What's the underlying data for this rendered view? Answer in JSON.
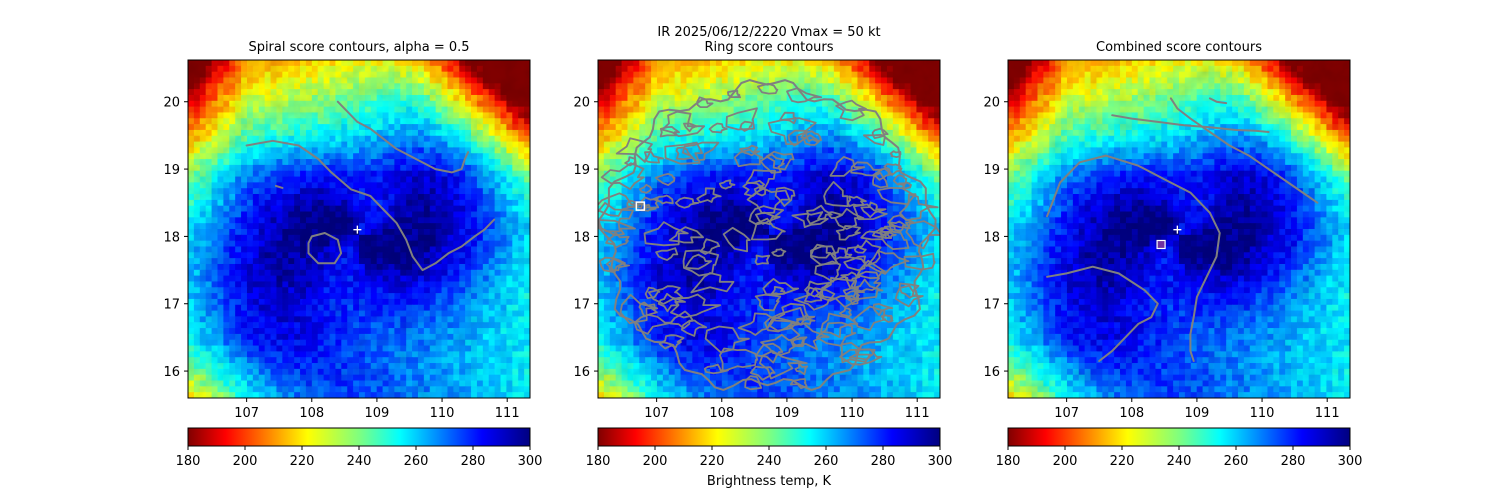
{
  "chart_data": {
    "type": "heatmap",
    "suptitle": "IR  2025/06/12/2220    Vmax = 50 kt",
    "colorbar_label": "Brightness temp, K",
    "colorbar_ticks": [
      "180",
      "200",
      "220",
      "240",
      "260",
      "280",
      "300"
    ],
    "xticks": [
      "107",
      "108",
      "109",
      "110",
      "111"
    ],
    "yticks": [
      "16",
      "17",
      "18",
      "19",
      "20"
    ],
    "xlim": [
      106.1,
      111.35
    ],
    "ylim": [
      15.6,
      20.62
    ],
    "clim": [
      180,
      300
    ],
    "colors": {
      "contour": "#808080",
      "center_marker": "#ffffff",
      "ring_marker": "#ffffff",
      "combined_marker": "#7030a0"
    },
    "storm_center": {
      "lon": 108.7,
      "lat": 18.1
    },
    "panels": [
      {
        "title": "Spiral score contours, alpha =  0.5",
        "mode": "spiral",
        "contours": [
          [
            [
              107.0,
              19.35
            ],
            [
              107.4,
              19.42
            ],
            [
              107.8,
              19.35
            ],
            [
              108.1,
              19.15
            ],
            [
              108.3,
              18.95
            ],
            [
              108.6,
              18.7
            ],
            [
              108.9,
              18.6
            ],
            [
              109.1,
              18.4
            ],
            [
              109.3,
              18.2
            ],
            [
              109.45,
              17.95
            ],
            [
              109.55,
              17.7
            ],
            [
              109.7,
              17.5
            ],
            [
              109.9,
              17.6
            ],
            [
              110.1,
              17.75
            ],
            [
              110.3,
              17.85
            ],
            [
              110.5,
              18.0
            ],
            [
              110.65,
              18.1
            ],
            [
              110.8,
              18.25
            ]
          ],
          [
            [
              108.4,
              20.0
            ],
            [
              108.55,
              19.85
            ],
            [
              108.7,
              19.7
            ],
            [
              108.9,
              19.6
            ],
            [
              109.1,
              19.45
            ],
            [
              109.3,
              19.3
            ],
            [
              109.6,
              19.15
            ],
            [
              109.9,
              19.0
            ],
            [
              110.15,
              18.95
            ],
            [
              110.3,
              19.0
            ],
            [
              110.35,
              19.15
            ],
            [
              110.4,
              19.25
            ]
          ],
          [
            [
              108.0,
              18.0
            ],
            [
              108.2,
              18.05
            ],
            [
              108.4,
              17.95
            ],
            [
              108.45,
              17.75
            ],
            [
              108.35,
              17.6
            ],
            [
              108.1,
              17.6
            ],
            [
              107.95,
              17.75
            ],
            [
              107.95,
              17.9
            ],
            [
              108.0,
              18.0
            ]
          ],
          [
            [
              107.45,
              18.75
            ],
            [
              107.55,
              18.72
            ]
          ]
        ],
        "markers": [
          {
            "type": "plus",
            "lon": 108.7,
            "lat": 18.1
          }
        ]
      },
      {
        "title": "Ring score contours",
        "mode": "ring",
        "ring_center": {
          "lon": 108.7,
          "lat": 18.0
        },
        "ring_radius_deg": 2.35,
        "markers": [
          {
            "type": "square",
            "lon": 106.75,
            "lat": 18.45
          }
        ]
      },
      {
        "title": "Combined score contours",
        "mode": "spiral",
        "contours": [
          [
            [
              106.7,
              18.3
            ],
            [
              106.9,
              18.8
            ],
            [
              107.2,
              19.1
            ],
            [
              107.6,
              19.2
            ],
            [
              108.1,
              19.05
            ],
            [
              108.5,
              18.85
            ],
            [
              108.9,
              18.65
            ],
            [
              109.2,
              18.35
            ],
            [
              109.35,
              18.05
            ],
            [
              109.3,
              17.7
            ],
            [
              109.15,
              17.4
            ],
            [
              109.0,
              17.1
            ],
            [
              108.95,
              16.8
            ],
            [
              108.9,
              16.55
            ],
            [
              108.9,
              16.3
            ],
            [
              108.95,
              16.15
            ]
          ],
          [
            [
              106.7,
              17.4
            ],
            [
              107.0,
              17.45
            ],
            [
              107.4,
              17.55
            ],
            [
              107.8,
              17.45
            ],
            [
              108.2,
              17.2
            ],
            [
              108.4,
              17.0
            ],
            [
              108.3,
              16.8
            ],
            [
              108.1,
              16.7
            ],
            [
              107.9,
              16.5
            ],
            [
              107.7,
              16.3
            ],
            [
              107.5,
              16.15
            ]
          ],
          [
            [
              108.6,
              20.05
            ],
            [
              108.7,
              19.9
            ],
            [
              108.9,
              19.75
            ],
            [
              109.2,
              19.55
            ],
            [
              109.5,
              19.35
            ],
            [
              109.8,
              19.2
            ],
            [
              110.1,
              19.0
            ],
            [
              110.4,
              18.8
            ],
            [
              110.7,
              18.6
            ],
            [
              110.85,
              18.5
            ]
          ],
          [
            [
              107.7,
              19.8
            ],
            [
              108.0,
              19.75
            ],
            [
              108.4,
              19.7
            ],
            [
              108.8,
              19.65
            ],
            [
              109.2,
              19.62
            ],
            [
              109.6,
              19.58
            ],
            [
              109.9,
              19.57
            ],
            [
              110.1,
              19.55
            ]
          ],
          [
            [
              109.2,
              20.05
            ],
            [
              109.3,
              20.0
            ],
            [
              109.45,
              19.98
            ]
          ]
        ],
        "markers": [
          {
            "type": "plus",
            "lon": 108.7,
            "lat": 18.1
          },
          {
            "type": "circle_square",
            "lon": 108.45,
            "lat": 17.88
          }
        ]
      }
    ]
  }
}
